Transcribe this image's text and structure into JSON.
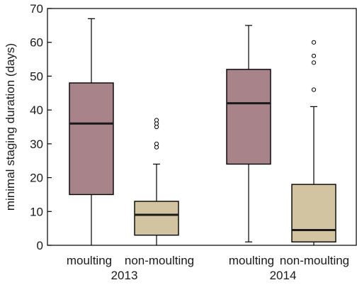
{
  "chart_data": {
    "type": "box",
    "ylabel": "minimal staging duration (days)",
    "ylim": [
      0,
      70
    ],
    "yticks": [
      0,
      10,
      20,
      30,
      40,
      50,
      60,
      70
    ],
    "grid": false,
    "groups": [
      {
        "label": "2013",
        "categories": [
          "moulting",
          "non-moulting"
        ]
      },
      {
        "label": "2014",
        "categories": [
          "moulting",
          "non-moulting"
        ]
      }
    ],
    "boxes": [
      {
        "group": "2013",
        "category": "moulting",
        "color": "#a8838a",
        "min": 0,
        "q1": 15,
        "median": 36,
        "q3": 48,
        "max": 67,
        "outliers": []
      },
      {
        "group": "2013",
        "category": "non-moulting",
        "color": "#d3c4a1",
        "min": 0,
        "q1": 3,
        "median": 9,
        "q3": 13,
        "max": 24,
        "outliers": [
          29,
          30,
          35,
          36,
          37
        ]
      },
      {
        "group": "2014",
        "category": "moulting",
        "color": "#a8838a",
        "min": 1,
        "q1": 24,
        "median": 42,
        "q3": 52,
        "max": 65,
        "outliers": []
      },
      {
        "group": "2014",
        "category": "non-moulting",
        "color": "#d3c4a1",
        "min": 0,
        "q1": 1,
        "median": 4.5,
        "q3": 18,
        "max": 41,
        "outliers": [
          46,
          54,
          56,
          60
        ]
      }
    ]
  }
}
